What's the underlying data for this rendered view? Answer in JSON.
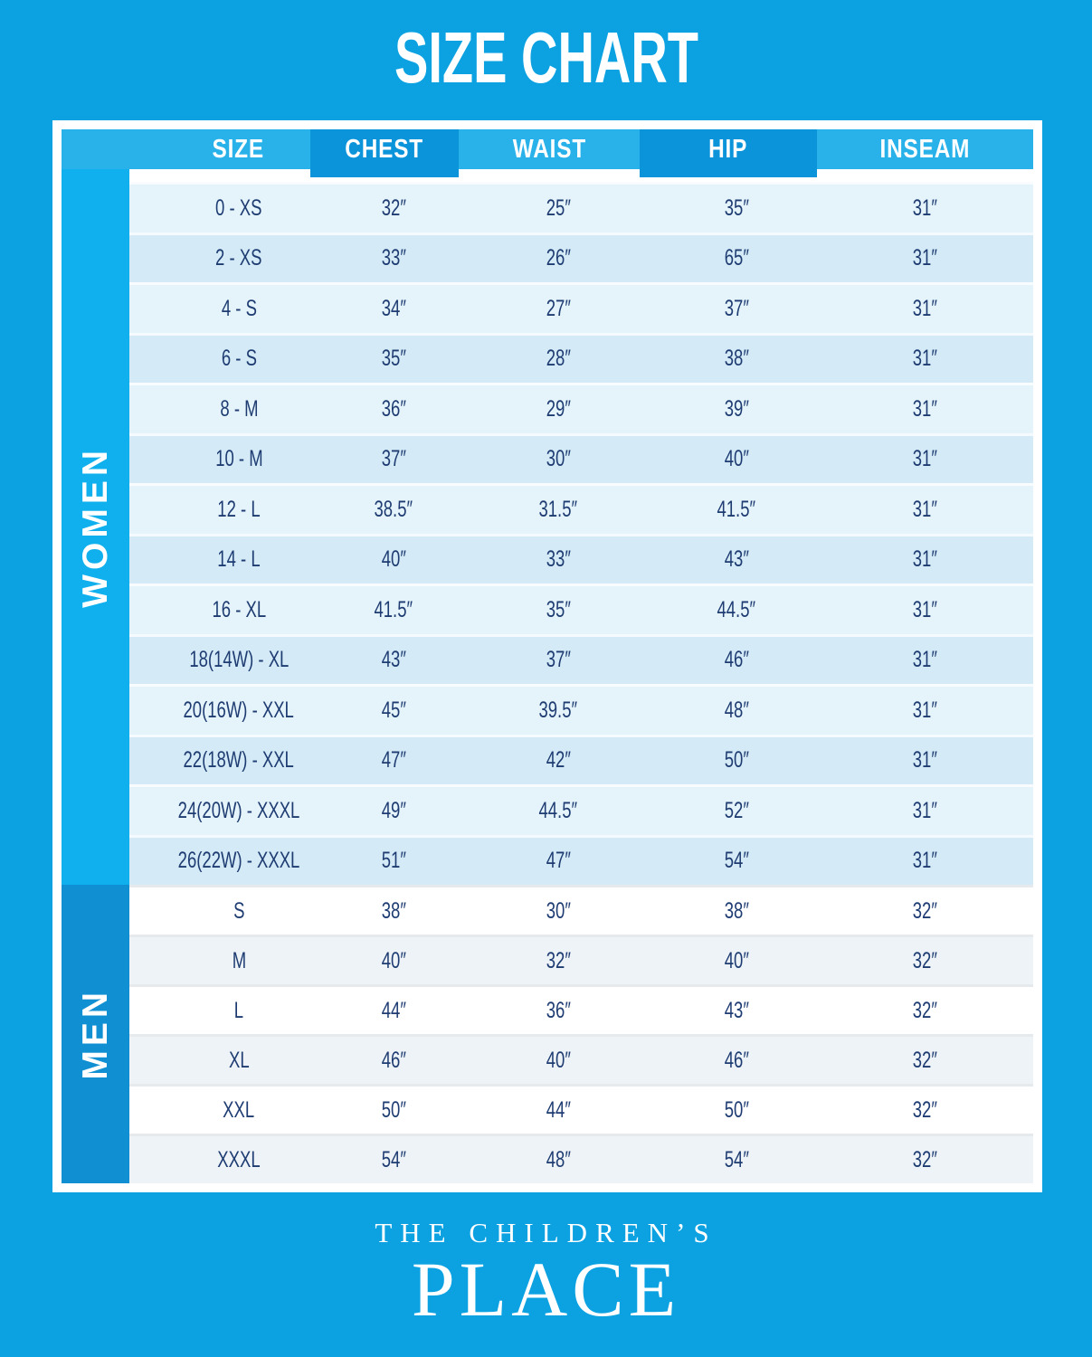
{
  "title": "SIZE CHART",
  "chart_data": {
    "type": "table",
    "title": "SIZE CHART",
    "columns": [
      "SIZE",
      "CHEST",
      "WAIST",
      "HIP",
      "INSEAM"
    ],
    "sections": [
      {
        "label": "WOMEN",
        "rows": [
          [
            "0 - XS",
            "32″",
            "25″",
            "35″",
            "31″"
          ],
          [
            "2 - XS",
            "33″",
            "26″",
            "65″",
            "31″"
          ],
          [
            "4 - S",
            "34″",
            "27″",
            "37″",
            "31″"
          ],
          [
            "6 - S",
            "35″",
            "28″",
            "38″",
            "31″"
          ],
          [
            "8 - M",
            "36″",
            "29″",
            "39″",
            "31″"
          ],
          [
            "10 - M",
            "37″",
            "30″",
            "40″",
            "31″"
          ],
          [
            "12 - L",
            "38.5″",
            "31.5″",
            "41.5″",
            "31″"
          ],
          [
            "14 - L",
            "40″",
            "33″",
            "43″",
            "31″"
          ],
          [
            "16 - XL",
            "41.5″",
            "35″",
            "44.5″",
            "31″"
          ],
          [
            "18(14W) - XL",
            "43″",
            "37″",
            "46″",
            "31″"
          ],
          [
            "20(16W) - XXL",
            "45″",
            "39.5″",
            "48″",
            "31″"
          ],
          [
            "22(18W) - XXL",
            "47″",
            "42″",
            "50″",
            "31″"
          ],
          [
            "24(20W) - XXXL",
            "49″",
            "44.5″",
            "52″",
            "31″"
          ],
          [
            "26(22W) - XXXL",
            "51″",
            "47″",
            "54″",
            "31″"
          ]
        ]
      },
      {
        "label": "MEN",
        "rows": [
          [
            "S",
            "38″",
            "30″",
            "38″",
            "32″"
          ],
          [
            "M",
            "40″",
            "32″",
            "40″",
            "32″"
          ],
          [
            "L",
            "44″",
            "36″",
            "43″",
            "32″"
          ],
          [
            "XL",
            "46″",
            "40″",
            "46″",
            "32″"
          ],
          [
            "XXL",
            "50″",
            "44″",
            "50″",
            "32″"
          ],
          [
            "XXXL",
            "54″",
            "48″",
            "54″",
            "32″"
          ]
        ]
      }
    ]
  },
  "brand": {
    "line1": "THE CHILDREN’S",
    "line2": "PLACE"
  },
  "colors": {
    "background": "#0CA2E2",
    "header_light": "#29B2EA",
    "header_dark": "#0C94DA",
    "women_band": "#0FB0ED",
    "men_band": "#1090D3",
    "women_row_light": "#E5F4FB",
    "women_row_dark": "#D4EBF7",
    "men_row_white": "#FFFFFF",
    "men_row_tint": "#EDF3F7",
    "text_navy": "#1E3C72",
    "frame_white": "#FFFFFF"
  }
}
